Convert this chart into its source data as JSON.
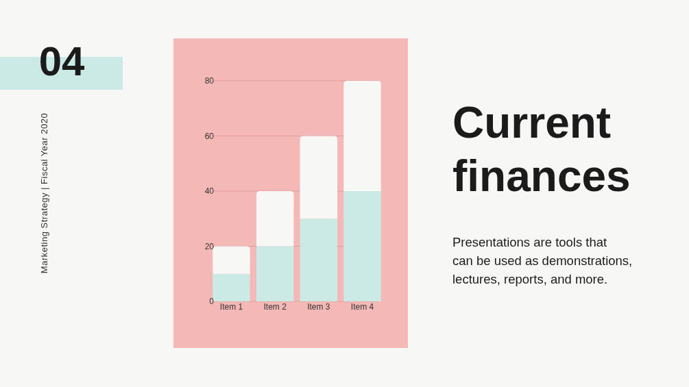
{
  "chart_data": {
    "type": "bar",
    "title": "Current finances",
    "subtitle": "Presentations are tools that can be used as demonstrations, lectures, reports, and more.",
    "annotations": [
      "04",
      "Marketing Strategy | Fiscal Year 2020"
    ],
    "categories": [
      "Item 1",
      "Item 2",
      "Item 3",
      "Item 4"
    ],
    "stacked": true,
    "series": [
      {
        "color": "#cbeae6",
        "values": [
          10,
          20,
          30,
          40
        ]
      },
      {
        "color": "#f7f7f5",
        "values": [
          10,
          20,
          30,
          40
        ]
      }
    ],
    "ylim": [
      0,
      80
    ],
    "yticks": [
      0,
      20,
      40,
      60,
      80
    ],
    "grid": "y"
  }
}
